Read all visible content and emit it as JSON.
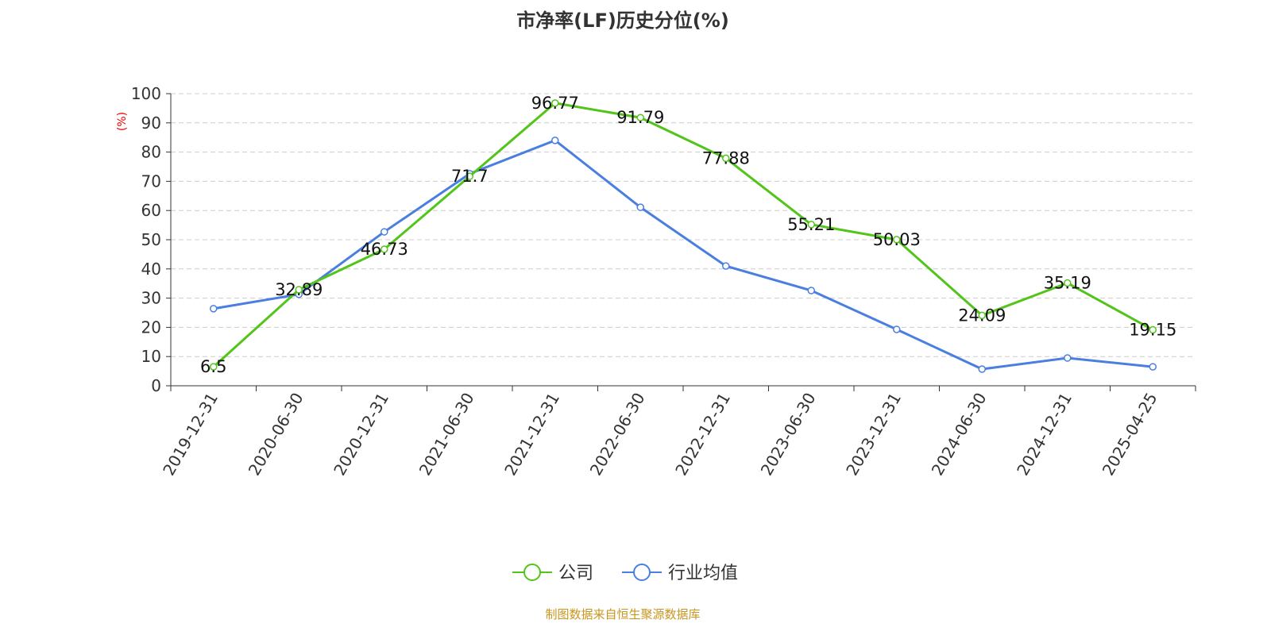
{
  "chart_data": {
    "type": "line",
    "title": "市净率(LF)历史分位(%)",
    "ylabel": "(%)",
    "xlabel": "",
    "ylim": [
      0,
      100
    ],
    "yticks": [
      0,
      10,
      20,
      30,
      40,
      50,
      60,
      70,
      80,
      90,
      100
    ],
    "grid": true,
    "legend_position": "bottom",
    "categories": [
      "2019-12-31",
      "2020-06-30",
      "2020-12-31",
      "2021-06-30",
      "2021-12-31",
      "2022-06-30",
      "2022-12-31",
      "2023-06-30",
      "2023-12-31",
      "2024-06-30",
      "2024-12-31",
      "2025-04-25"
    ],
    "series": [
      {
        "name": "公司",
        "color": "#52c41a",
        "show_labels": true,
        "values": [
          6.5,
          32.89,
          46.73,
          71.7,
          96.77,
          91.79,
          77.88,
          55.21,
          50.03,
          24.09,
          35.19,
          19.15
        ]
      },
      {
        "name": "行业均值",
        "color": "#4a7fe0",
        "show_labels": false,
        "values": [
          26.4,
          31.3,
          52.7,
          72.6,
          84.0,
          61.1,
          41.0,
          32.6,
          19.3,
          5.7,
          9.5,
          6.5
        ]
      }
    ]
  },
  "source": "制图数据来自恒生聚源数据库"
}
